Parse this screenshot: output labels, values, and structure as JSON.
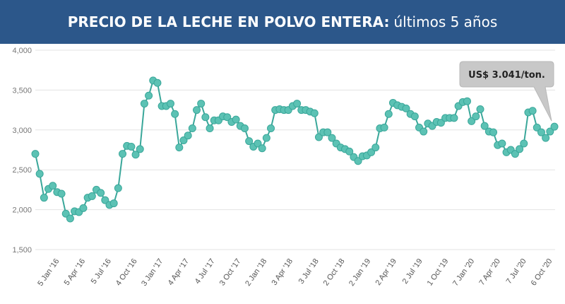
{
  "header": {
    "title_bold": "PRECIO DE LA LECHE EN POLVO ENTERA:",
    "title_rest": "últimos 5 años"
  },
  "chart_data": {
    "type": "line",
    "title": "PRECIO DE LA LECHE EN POLVO ENTERA: últimos 5 años",
    "xlabel": "",
    "ylabel": "",
    "ylim": [
      1500,
      4000
    ],
    "y_ticks": [
      "4,000",
      "3,500",
      "3,000",
      "2,500",
      "2,000",
      "1,500"
    ],
    "x_ticks": [
      "5 Jan '16",
      "5 Apr '16",
      "5 Jul '16",
      "4 Oct '16",
      "3 Jan '17",
      "4 Apr '17",
      "4 Jul '17",
      "3 Oct '17",
      "2 Jan '18",
      "3 Apr '18",
      "3 Jul '18",
      "2 Oct '18",
      "2 Jan '19",
      "2 Apr '19",
      "2 Jul '19",
      "1 Oct '19",
      "7 Jan '20",
      "7 Apr '20",
      "7 Jul '20",
      "6 Oct '20"
    ],
    "grid": true,
    "marker_color": "#5cc2b4",
    "line_color": "#3aa79a",
    "annotation": "US$ 3.041/ton.",
    "series": [
      {
        "values": [
          2700,
          2450,
          2150,
          2260,
          2300,
          2220,
          2200,
          1950,
          1890,
          1980,
          1970,
          2020,
          2150,
          2170,
          2250,
          2210,
          2120,
          2060,
          2080,
          2270,
          2700,
          2800,
          2790,
          2690,
          2760,
          3330,
          3430,
          3620,
          3590,
          3300,
          3300,
          3330,
          3200,
          2780,
          2870,
          2930,
          3020,
          3250,
          3330,
          3160,
          3020,
          3120,
          3120,
          3170,
          3160,
          3100,
          3130,
          3050,
          3020,
          2860,
          2790,
          2830,
          2770,
          2900,
          3020,
          3250,
          3260,
          3250,
          3250,
          3300,
          3330,
          3250,
          3250,
          3230,
          3210,
          2910,
          2970,
          2970,
          2900,
          2830,
          2780,
          2760,
          2730,
          2660,
          2610,
          2670,
          2680,
          2720,
          2780,
          3020,
          3030,
          3200,
          3340,
          3310,
          3290,
          3270,
          3200,
          3170,
          3030,
          2980,
          3080,
          3050,
          3100,
          3090,
          3150,
          3150,
          3150,
          3300,
          3350,
          3360,
          3110,
          3170,
          3260,
          3050,
          2980,
          2970,
          2810,
          2830,
          2720,
          2750,
          2700,
          2760,
          2830,
          3220,
          3240,
          3030,
          2970,
          2900,
          2980,
          3041
        ]
      }
    ]
  }
}
